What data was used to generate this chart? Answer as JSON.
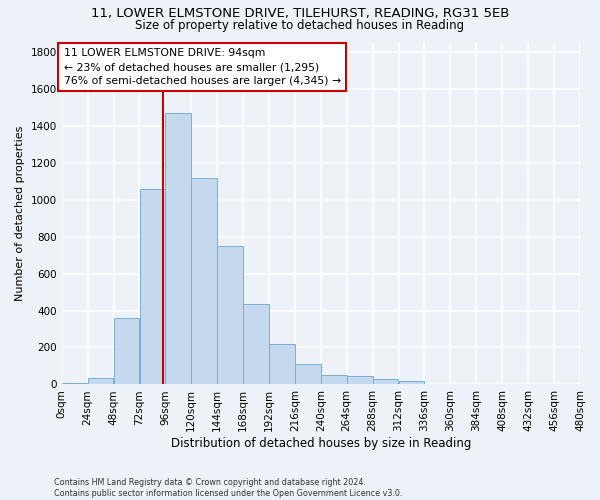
{
  "title1": "11, LOWER ELMSTONE DRIVE, TILEHURST, READING, RG31 5EB",
  "title2": "Size of property relative to detached houses in Reading",
  "xlabel": "Distribution of detached houses by size in Reading",
  "ylabel": "Number of detached properties",
  "bin_edges": [
    0,
    24,
    48,
    72,
    96,
    120,
    144,
    168,
    192,
    216,
    240,
    264,
    288,
    312,
    336,
    360,
    384,
    408,
    432,
    456,
    480
  ],
  "bar_heights": [
    10,
    35,
    360,
    1060,
    1470,
    1115,
    750,
    435,
    220,
    110,
    50,
    45,
    30,
    20,
    5,
    3,
    2,
    1,
    1,
    0
  ],
  "bar_color": "#c5d9ee",
  "bar_edgecolor": "#7aaed6",
  "property_size": 94,
  "vline_color": "#cc0000",
  "annotation_line1": "11 LOWER ELMSTONE DRIVE: 94sqm",
  "annotation_line2": "← 23% of detached houses are smaller (1,295)",
  "annotation_line3": "76% of semi-detached houses are larger (4,345) →",
  "annotation_box_edgecolor": "#cc0000",
  "annotation_box_facecolor": "#ffffff",
  "footnote": "Contains HM Land Registry data © Crown copyright and database right 2024.\nContains public sector information licensed under the Open Government Licence v3.0.",
  "ylim": [
    0,
    1850
  ],
  "background_color": "#edf2f9",
  "plot_bg_color": "#edf2f9",
  "grid_color": "#ffffff",
  "ytick_positions": [
    0,
    200,
    400,
    600,
    800,
    1000,
    1200,
    1400,
    1600,
    1800
  ],
  "title1_fontsize": 9.5,
  "title2_fontsize": 8.5,
  "xlabel_fontsize": 8.5,
  "ylabel_fontsize": 8,
  "tick_fontsize": 7.5,
  "annot_fontsize": 7.8
}
